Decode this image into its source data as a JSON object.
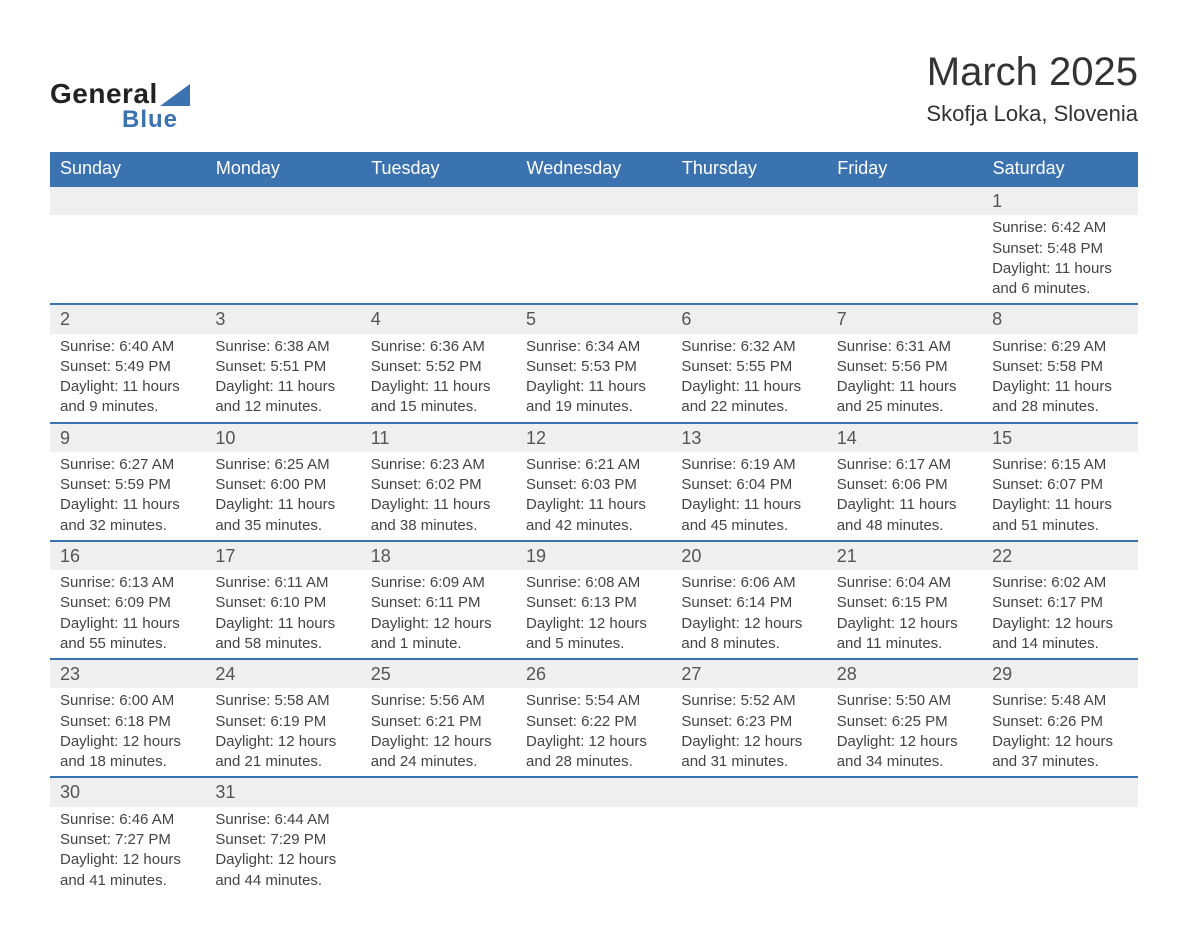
{
  "logo": {
    "text1": "General",
    "text2": "Blue",
    "accent_color": "#3b72b0"
  },
  "header": {
    "title": "March 2025",
    "location": "Skofja Loka, Slovenia"
  },
  "calendar": {
    "type": "table",
    "header_bg": "#3b72b0",
    "header_fg": "#ffffff",
    "row_separator_color": "#3b72b0",
    "daynum_bg": "#efefef",
    "text_color": "#444444",
    "font_size_body": 15,
    "font_size_header": 18,
    "font_size_title": 40,
    "columns": [
      "Sunday",
      "Monday",
      "Tuesday",
      "Wednesday",
      "Thursday",
      "Friday",
      "Saturday"
    ],
    "weeks": [
      [
        null,
        null,
        null,
        null,
        null,
        null,
        {
          "n": "1",
          "sr": "Sunrise: 6:42 AM",
          "ss": "Sunset: 5:48 PM",
          "dl": "Daylight: 11 hours and 6 minutes."
        }
      ],
      [
        {
          "n": "2",
          "sr": "Sunrise: 6:40 AM",
          "ss": "Sunset: 5:49 PM",
          "dl": "Daylight: 11 hours and 9 minutes."
        },
        {
          "n": "3",
          "sr": "Sunrise: 6:38 AM",
          "ss": "Sunset: 5:51 PM",
          "dl": "Daylight: 11 hours and 12 minutes."
        },
        {
          "n": "4",
          "sr": "Sunrise: 6:36 AM",
          "ss": "Sunset: 5:52 PM",
          "dl": "Daylight: 11 hours and 15 minutes."
        },
        {
          "n": "5",
          "sr": "Sunrise: 6:34 AM",
          "ss": "Sunset: 5:53 PM",
          "dl": "Daylight: 11 hours and 19 minutes."
        },
        {
          "n": "6",
          "sr": "Sunrise: 6:32 AM",
          "ss": "Sunset: 5:55 PM",
          "dl": "Daylight: 11 hours and 22 minutes."
        },
        {
          "n": "7",
          "sr": "Sunrise: 6:31 AM",
          "ss": "Sunset: 5:56 PM",
          "dl": "Daylight: 11 hours and 25 minutes."
        },
        {
          "n": "8",
          "sr": "Sunrise: 6:29 AM",
          "ss": "Sunset: 5:58 PM",
          "dl": "Daylight: 11 hours and 28 minutes."
        }
      ],
      [
        {
          "n": "9",
          "sr": "Sunrise: 6:27 AM",
          "ss": "Sunset: 5:59 PM",
          "dl": "Daylight: 11 hours and 32 minutes."
        },
        {
          "n": "10",
          "sr": "Sunrise: 6:25 AM",
          "ss": "Sunset: 6:00 PM",
          "dl": "Daylight: 11 hours and 35 minutes."
        },
        {
          "n": "11",
          "sr": "Sunrise: 6:23 AM",
          "ss": "Sunset: 6:02 PM",
          "dl": "Daylight: 11 hours and 38 minutes."
        },
        {
          "n": "12",
          "sr": "Sunrise: 6:21 AM",
          "ss": "Sunset: 6:03 PM",
          "dl": "Daylight: 11 hours and 42 minutes."
        },
        {
          "n": "13",
          "sr": "Sunrise: 6:19 AM",
          "ss": "Sunset: 6:04 PM",
          "dl": "Daylight: 11 hours and 45 minutes."
        },
        {
          "n": "14",
          "sr": "Sunrise: 6:17 AM",
          "ss": "Sunset: 6:06 PM",
          "dl": "Daylight: 11 hours and 48 minutes."
        },
        {
          "n": "15",
          "sr": "Sunrise: 6:15 AM",
          "ss": "Sunset: 6:07 PM",
          "dl": "Daylight: 11 hours and 51 minutes."
        }
      ],
      [
        {
          "n": "16",
          "sr": "Sunrise: 6:13 AM",
          "ss": "Sunset: 6:09 PM",
          "dl": "Daylight: 11 hours and 55 minutes."
        },
        {
          "n": "17",
          "sr": "Sunrise: 6:11 AM",
          "ss": "Sunset: 6:10 PM",
          "dl": "Daylight: 11 hours and 58 minutes."
        },
        {
          "n": "18",
          "sr": "Sunrise: 6:09 AM",
          "ss": "Sunset: 6:11 PM",
          "dl": "Daylight: 12 hours and 1 minute."
        },
        {
          "n": "19",
          "sr": "Sunrise: 6:08 AM",
          "ss": "Sunset: 6:13 PM",
          "dl": "Daylight: 12 hours and 5 minutes."
        },
        {
          "n": "20",
          "sr": "Sunrise: 6:06 AM",
          "ss": "Sunset: 6:14 PM",
          "dl": "Daylight: 12 hours and 8 minutes."
        },
        {
          "n": "21",
          "sr": "Sunrise: 6:04 AM",
          "ss": "Sunset: 6:15 PM",
          "dl": "Daylight: 12 hours and 11 minutes."
        },
        {
          "n": "22",
          "sr": "Sunrise: 6:02 AM",
          "ss": "Sunset: 6:17 PM",
          "dl": "Daylight: 12 hours and 14 minutes."
        }
      ],
      [
        {
          "n": "23",
          "sr": "Sunrise: 6:00 AM",
          "ss": "Sunset: 6:18 PM",
          "dl": "Daylight: 12 hours and 18 minutes."
        },
        {
          "n": "24",
          "sr": "Sunrise: 5:58 AM",
          "ss": "Sunset: 6:19 PM",
          "dl": "Daylight: 12 hours and 21 minutes."
        },
        {
          "n": "25",
          "sr": "Sunrise: 5:56 AM",
          "ss": "Sunset: 6:21 PM",
          "dl": "Daylight: 12 hours and 24 minutes."
        },
        {
          "n": "26",
          "sr": "Sunrise: 5:54 AM",
          "ss": "Sunset: 6:22 PM",
          "dl": "Daylight: 12 hours and 28 minutes."
        },
        {
          "n": "27",
          "sr": "Sunrise: 5:52 AM",
          "ss": "Sunset: 6:23 PM",
          "dl": "Daylight: 12 hours and 31 minutes."
        },
        {
          "n": "28",
          "sr": "Sunrise: 5:50 AM",
          "ss": "Sunset: 6:25 PM",
          "dl": "Daylight: 12 hours and 34 minutes."
        },
        {
          "n": "29",
          "sr": "Sunrise: 5:48 AM",
          "ss": "Sunset: 6:26 PM",
          "dl": "Daylight: 12 hours and 37 minutes."
        }
      ],
      [
        {
          "n": "30",
          "sr": "Sunrise: 6:46 AM",
          "ss": "Sunset: 7:27 PM",
          "dl": "Daylight: 12 hours and 41 minutes."
        },
        {
          "n": "31",
          "sr": "Sunrise: 6:44 AM",
          "ss": "Sunset: 7:29 PM",
          "dl": "Daylight: 12 hours and 44 minutes."
        },
        null,
        null,
        null,
        null,
        null
      ]
    ]
  }
}
